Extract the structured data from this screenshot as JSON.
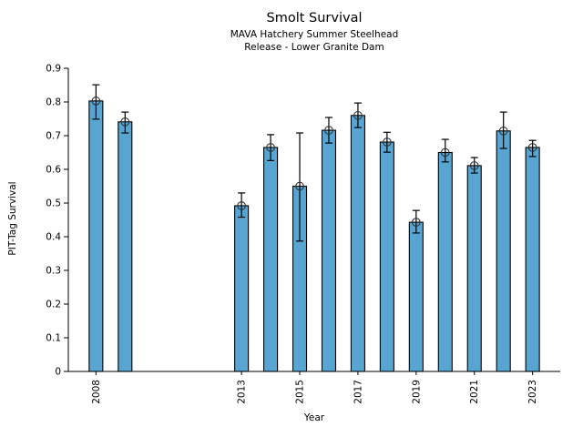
{
  "title": "Smolt Survival",
  "subtitle_line1": "MAVA Hatchery Summer Steelhead",
  "subtitle_line2": "Release - Lower Granite Dam",
  "chart_data": {
    "type": "bar",
    "title": "Smolt Survival",
    "subtitle": [
      "MAVA Hatchery Summer Steelhead",
      "Release - Lower Granite Dam"
    ],
    "xlabel": "Year",
    "ylabel": "PIT-Tag Survival",
    "x": [
      2008,
      2009,
      2013,
      2014,
      2015,
      2016,
      2017,
      2018,
      2019,
      2020,
      2021,
      2022,
      2023
    ],
    "values": [
      0.803,
      0.741,
      0.492,
      0.665,
      0.55,
      0.716,
      0.76,
      0.681,
      0.443,
      0.65,
      0.611,
      0.714,
      0.665
    ],
    "error_low": [
      0.749,
      0.708,
      0.458,
      0.626,
      0.387,
      0.678,
      0.724,
      0.651,
      0.411,
      0.622,
      0.589,
      0.662,
      0.638
    ],
    "error_high": [
      0.851,
      0.77,
      0.53,
      0.703,
      0.708,
      0.754,
      0.797,
      0.71,
      0.478,
      0.689,
      0.635,
      0.77,
      0.686
    ],
    "xticks": [
      2008,
      2013,
      2015,
      2017,
      2019,
      2021,
      2023
    ],
    "yticks": [
      0,
      0.1,
      0.2,
      0.3,
      0.4,
      0.5,
      0.6,
      0.7,
      0.8,
      0.9
    ],
    "ytick_labels": [
      "0",
      "0.1",
      "0.2",
      "0.3",
      "0.4",
      "0.5",
      "0.6",
      "0.7",
      "0.8",
      "0.9"
    ],
    "ylim": [
      0,
      0.9
    ],
    "xlim": [
      2007.05,
      2023.95
    ],
    "grid": false,
    "legend": false,
    "marker": "open-circle",
    "bar_color": "#59A5D2",
    "bar_edge_color": "#000000",
    "error_color": "#000000",
    "marker_edge_color": "#303030",
    "xtick_label_rotation": 90
  }
}
